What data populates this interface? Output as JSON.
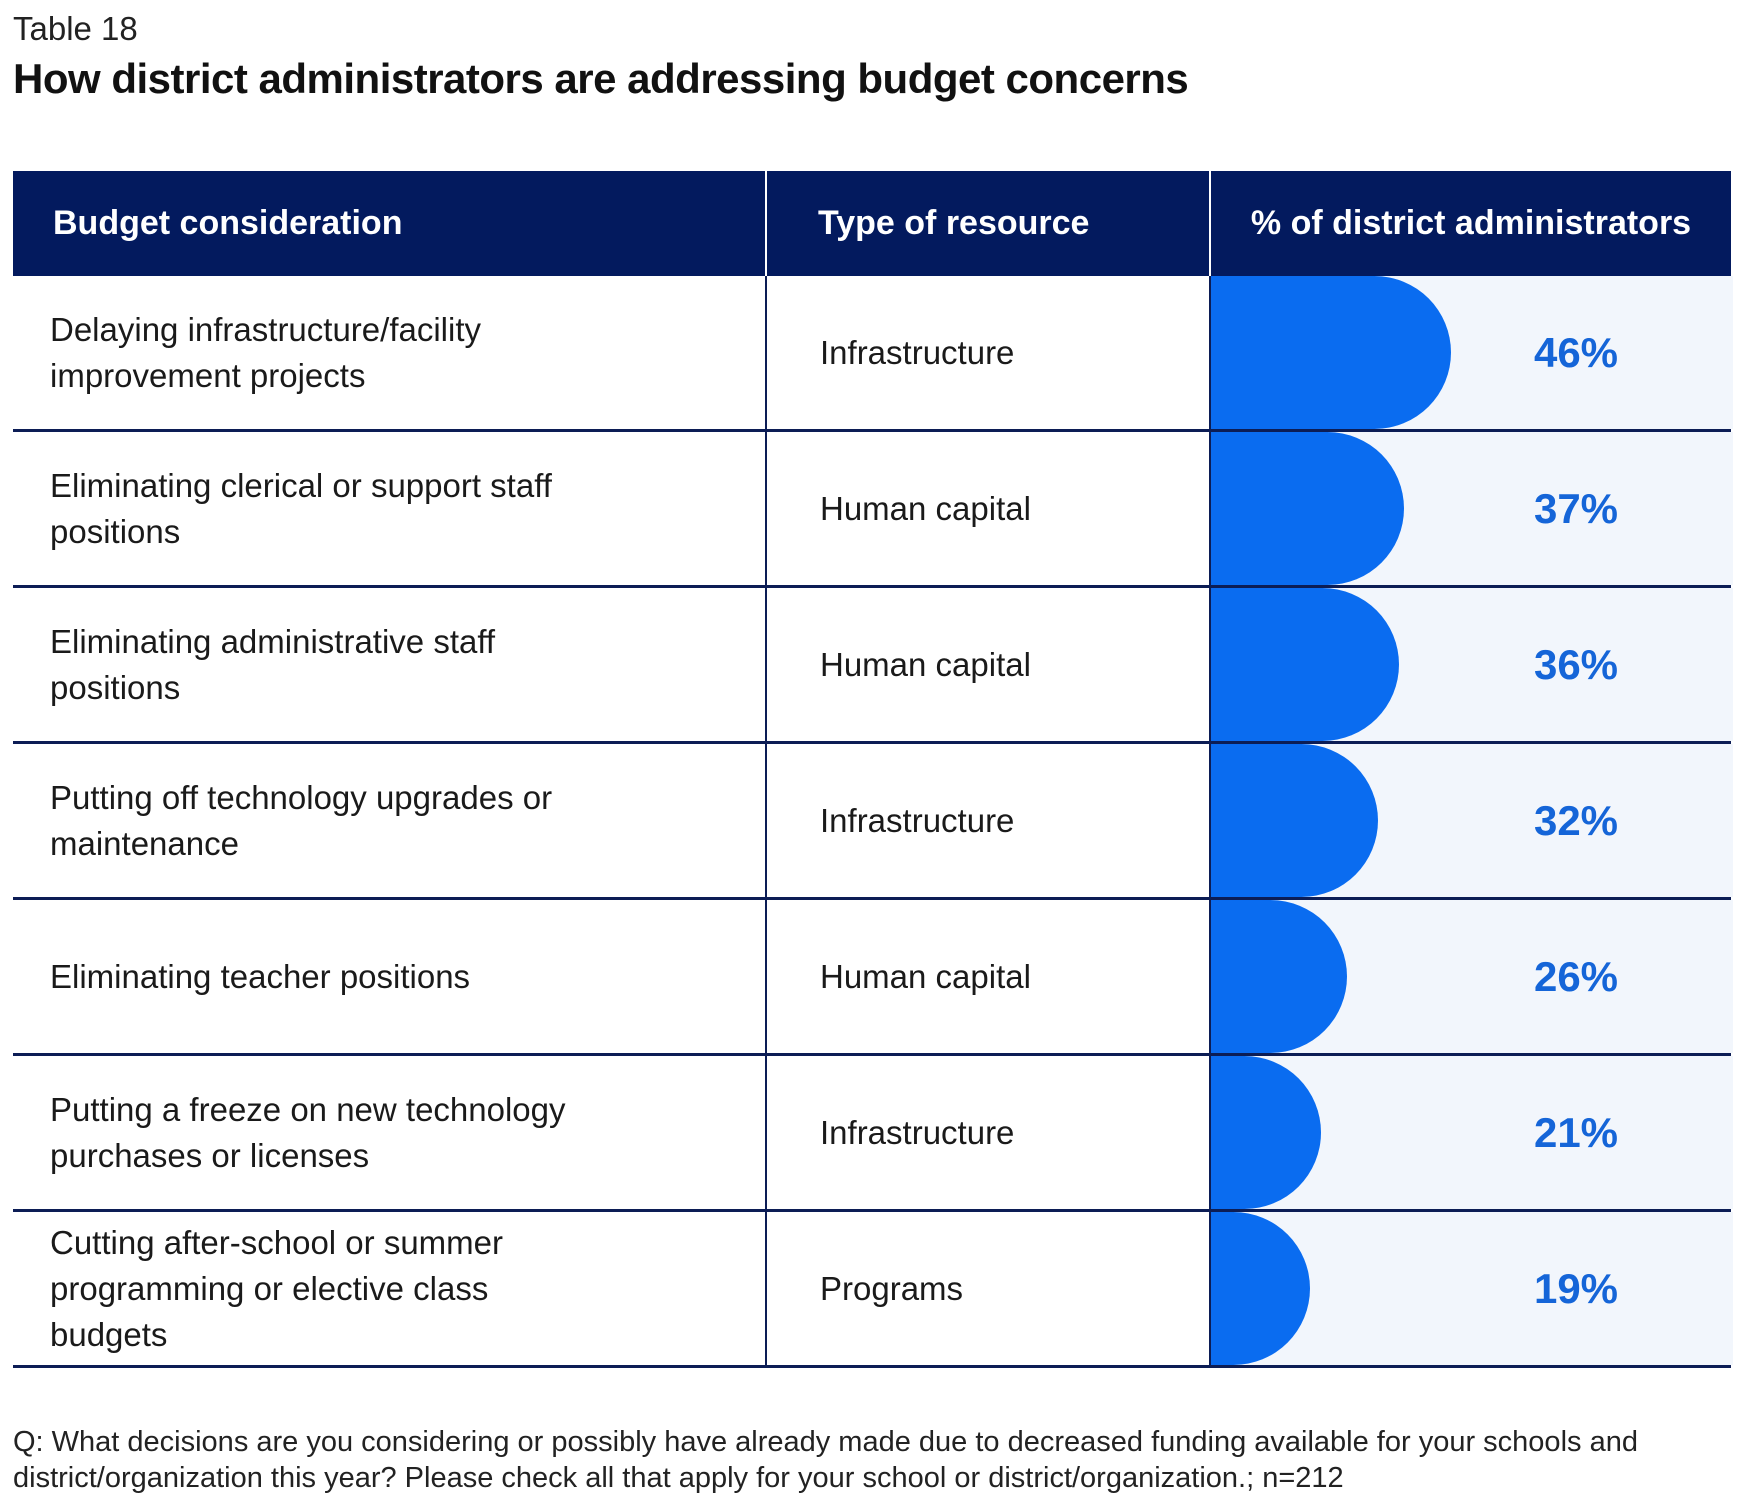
{
  "table_label": "Table 18",
  "title": "How district administrators are addressing budget concerns",
  "chart_data": {
    "type": "table",
    "columns": [
      "Budget consideration",
      "Type of resource",
      "% of district administrators"
    ],
    "rows": [
      {
        "consideration": "Delaying infrastructure/facility improvement projects",
        "resource": "Infrastructure",
        "value": 46,
        "label": "46%"
      },
      {
        "consideration": "Eliminating clerical or support staff positions",
        "resource": "Human capital",
        "value": 37,
        "label": "37%"
      },
      {
        "consideration": "Eliminating administrative staff positions",
        "resource": "Human capital",
        "value": 36,
        "label": "36%"
      },
      {
        "consideration": "Putting off technology upgrades or maintenance",
        "resource": "Infrastructure",
        "value": 32,
        "label": "32%"
      },
      {
        "consideration": "Eliminating teacher positions",
        "resource": "Human capital",
        "value": 26,
        "label": "26%"
      },
      {
        "consideration": "Putting a freeze on new technology purchases or licenses",
        "resource": "Infrastructure",
        "value": 21,
        "label": "21%"
      },
      {
        "consideration": "Cutting after-school or summer programming or elective class budgets",
        "resource": "Programs",
        "value": 19,
        "label": "19%"
      }
    ],
    "value_range": [
      0,
      100
    ],
    "colors": {
      "header": "#031a5e",
      "bar": "#0a6cf0",
      "bar_background": "#f2f6fc",
      "value_text": "#1565d8"
    }
  },
  "footer": "Q: What decisions are you considering or possibly have already made due to decreased funding available for your schools and district/organization this year?  Please check all that apply for your school or district/organization.; n=212"
}
